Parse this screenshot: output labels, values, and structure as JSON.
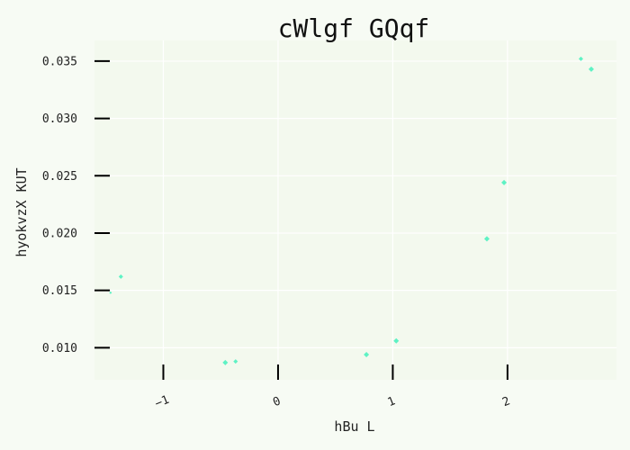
{
  "chart_data": {
    "type": "scatter",
    "title": "cWlgf  GQqf",
    "xlabel": "hBu L",
    "ylabel": "hyokvzX KUT",
    "xlim": [
      -1.6,
      2.95
    ],
    "ylim": [
      0.0072,
      0.0368
    ],
    "xticks": [
      -1,
      0,
      1,
      2
    ],
    "xtick_labels": [
      "−1",
      "0",
      "1",
      "2"
    ],
    "yticks": [
      0.01,
      0.015,
      0.02,
      0.025,
      0.03,
      0.035
    ],
    "ytick_labels": [
      "0.010",
      "0.015",
      "0.020",
      "0.025",
      "0.030",
      "0.035"
    ],
    "grid": true,
    "series": [
      {
        "color": "#5ef2c4",
        "points": [
          {
            "x": -1.46,
            "y": 0.0148,
            "size": 1.5
          },
          {
            "x": -1.37,
            "y": 0.0162,
            "size": 2.5
          },
          {
            "x": -0.46,
            "y": 0.0087,
            "size": 3
          },
          {
            "x": -0.37,
            "y": 0.0088,
            "size": 2.5
          },
          {
            "x": 0.77,
            "y": 0.0094,
            "size": 3
          },
          {
            "x": 1.03,
            "y": 0.0106,
            "size": 3
          },
          {
            "x": 1.82,
            "y": 0.0195,
            "size": 3
          },
          {
            "x": 1.97,
            "y": 0.0244,
            "size": 3
          },
          {
            "x": 2.64,
            "y": 0.0352,
            "size": 2.5
          },
          {
            "x": 2.73,
            "y": 0.0343,
            "size": 3
          }
        ]
      }
    ]
  }
}
